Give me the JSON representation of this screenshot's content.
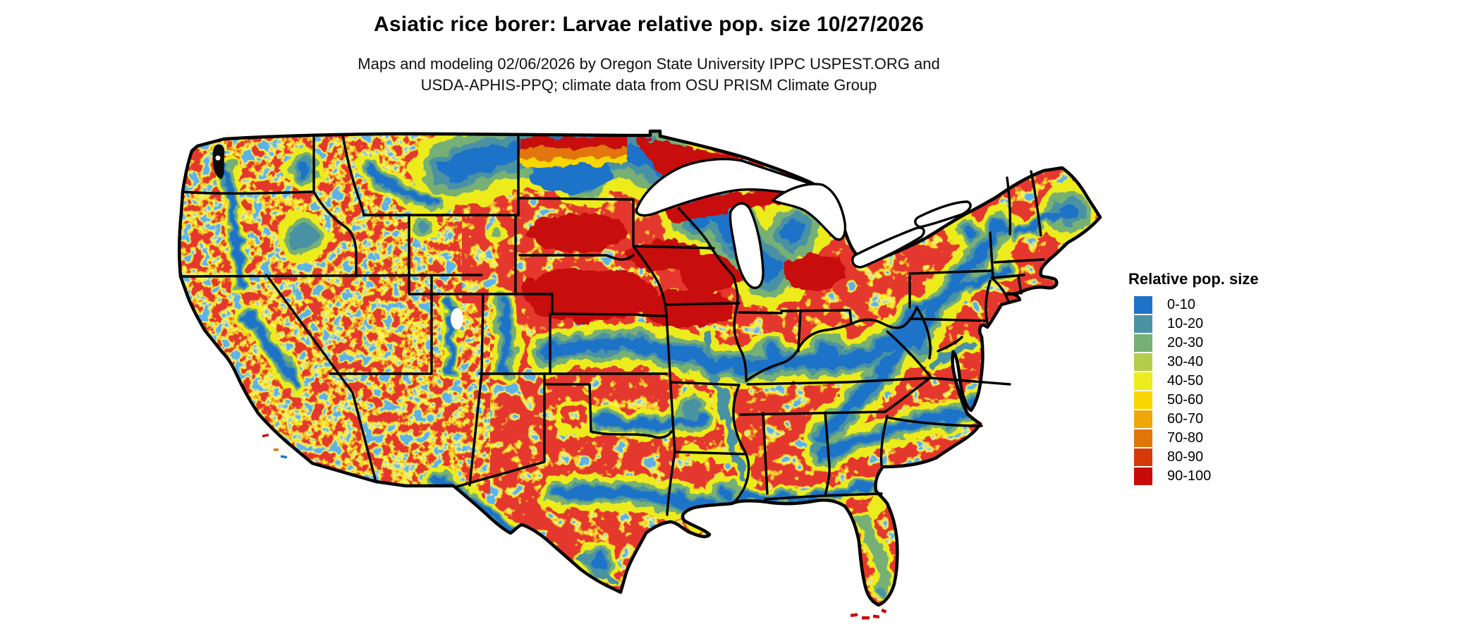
{
  "header": {
    "title": "Asiatic rice borer: Larvae relative pop. size 10/27/2026",
    "subtitle_line1": "Maps and modeling 02/06/2026 by Oregon State University IPPC USPEST.ORG and",
    "subtitle_line2": "USDA-APHIS-PPQ; climate data from OSU PRISM Climate Group"
  },
  "legend": {
    "title": "Relative pop. size",
    "items": [
      {
        "label": "0-10",
        "color": "#1e73c8"
      },
      {
        "label": "10-20",
        "color": "#4a92a4"
      },
      {
        "label": "20-30",
        "color": "#77b075"
      },
      {
        "label": "30-40",
        "color": "#b4cd4a"
      },
      {
        "label": "40-50",
        "color": "#ecec1e"
      },
      {
        "label": "50-60",
        "color": "#fad600"
      },
      {
        "label": "60-70",
        "color": "#f0a70a"
      },
      {
        "label": "70-80",
        "color": "#e27508"
      },
      {
        "label": "80-90",
        "color": "#d43a06"
      },
      {
        "label": "90-100",
        "color": "#c80b07"
      }
    ]
  },
  "map": {
    "region": "Conterminous United States",
    "style": "gridded raster choropleth with state borders",
    "border_color": "#000000",
    "water_color": "#ffffff",
    "dominant_color": "#c80b07"
  },
  "chart_data": {
    "type": "heatmap",
    "title": "Asiatic rice borer: Larvae relative pop. size 10/27/2026",
    "legend_title": "Relative pop. size",
    "categories": [
      "0-10",
      "10-20",
      "20-30",
      "30-40",
      "40-50",
      "50-60",
      "60-70",
      "70-80",
      "80-90",
      "90-100"
    ],
    "colors": [
      "#1e73c8",
      "#4a92a4",
      "#77b075",
      "#b4cd4a",
      "#ecec1e",
      "#fad600",
      "#f0a70a",
      "#e27508",
      "#d43a06",
      "#c80b07"
    ],
    "value_range": [
      0,
      100
    ],
    "map_date": "10/27/2026",
    "model_run_date": "02/06/2026",
    "high_value_regions": "most of the US shown in 90-100 red",
    "low_value_regions": "northern plains (MT/ND/MN/WI/MI), mountain west pockets, Appalachians, central KS-MO-IL-IN band, central Texas and Gulf strip, piedmont NC/SC/GA, northern Maine"
  }
}
